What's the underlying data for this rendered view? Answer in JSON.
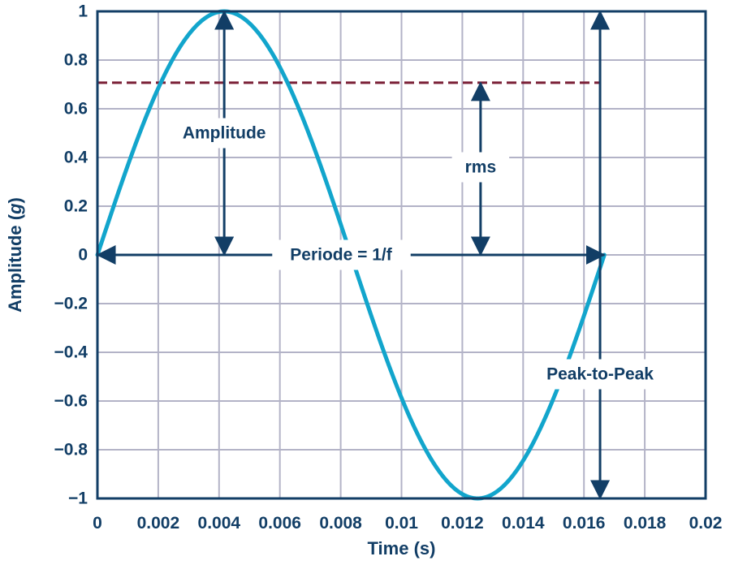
{
  "chart_data": {
    "type": "line",
    "title": "",
    "xlabel": "Time (s)",
    "ylabel": {
      "prefix": "Amplitude (",
      "italic": "g",
      "suffix": ")"
    },
    "xlim": [
      0,
      0.02
    ],
    "ylim": [
      -1,
      1
    ],
    "grid": true,
    "xticks": {
      "values": [
        0,
        0.002,
        0.004,
        0.006,
        0.008,
        0.01,
        0.012,
        0.014,
        0.016,
        0.018,
        0.02
      ],
      "labels": [
        "0",
        "0.002",
        "0.004",
        "0.006",
        "0.008",
        "0.01",
        "0.012",
        "0.014",
        "0.016",
        "0.018",
        "0.02"
      ]
    },
    "yticks": {
      "values": [
        1,
        0.8,
        0.6,
        0.4,
        0.2,
        0,
        -0.2,
        -0.4,
        -0.6,
        -0.8,
        -1
      ],
      "labels": [
        "1",
        "0.8",
        "0.6",
        "0.4",
        "0.2",
        "0",
        "−0.2",
        "−0.4",
        "−0.6",
        "−0.8",
        "−1"
      ]
    },
    "series": [
      {
        "function": "sine",
        "amplitude": 1,
        "frequency_hz": 60,
        "period_s": 0.01667,
        "x_range": [
          0,
          0.01667
        ],
        "color": "#12A5CC"
      }
    ],
    "reference_lines": [
      {
        "kind": "rms",
        "y": 0.707,
        "x_range": [
          0,
          0.01653
        ],
        "style": "dashed",
        "color": "#7A1E35"
      }
    ],
    "annotations": {
      "amplitude": {
        "label": "Amplitude",
        "x": 0.00417,
        "y_range": [
          0,
          1
        ]
      },
      "rms": {
        "label": "rms",
        "x": 0.0126,
        "y_range": [
          0,
          0.707
        ]
      },
      "period": {
        "label": "Periode = 1/f",
        "y": 0,
        "x_range": [
          0,
          0.01667
        ]
      },
      "peak_to_peak": {
        "label": "Peak-to-Peak",
        "x": 0.01653,
        "y_range": [
          -1,
          1
        ]
      }
    },
    "colors": {
      "axis": "#123E66",
      "text": "#123E66",
      "grid": "#B3B3C7",
      "curve": "#12A5CC",
      "rms_line": "#7A1E35"
    }
  }
}
